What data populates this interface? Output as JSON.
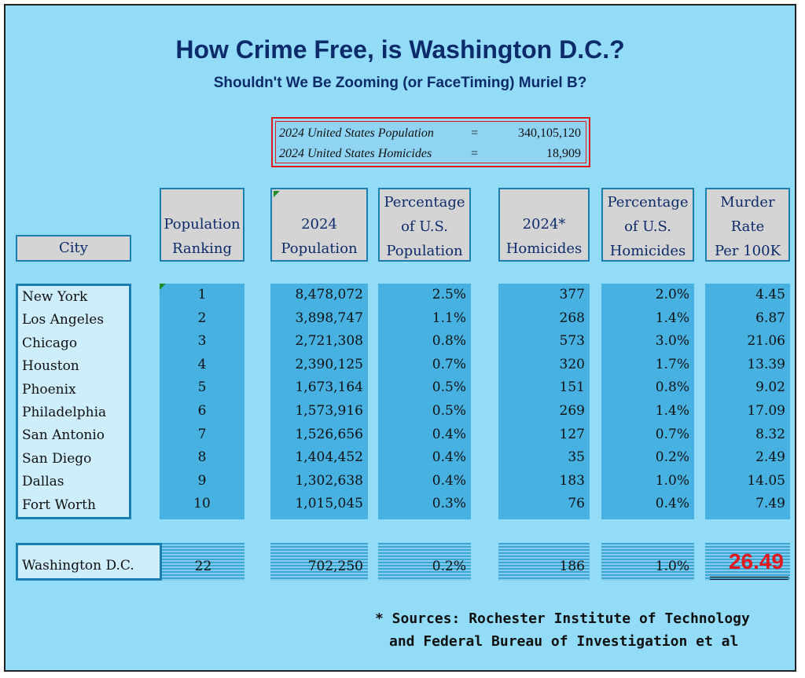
{
  "title": "How Crime Free, is Washington D.C.?",
  "subtitle": "Shouldn't We Be Zooming (or FaceTiming) Muriel B?",
  "us_summary": {
    "population_label": "2024 United States Population",
    "population_eq": "=",
    "population_value": "340,105,120",
    "homicides_label": "2024 United States Homicides",
    "homicides_eq": "=",
    "homicides_value": "18,909"
  },
  "headers": {
    "city": "City",
    "ranking": [
      "Population",
      "Ranking"
    ],
    "population": [
      "2024",
      "Population"
    ],
    "pct_population": [
      "Percentage",
      "of U.S.",
      "Population"
    ],
    "homicides": [
      "2024*",
      "Homicides"
    ],
    "pct_homicides": [
      "Percentage",
      "of U.S.",
      "Homicides"
    ],
    "murder_rate": [
      "Murder",
      "Rate",
      "Per 100K"
    ]
  },
  "rows": [
    {
      "city": "New York",
      "rank": "1",
      "population": "8,478,072",
      "pct_pop": "2.5%",
      "homicides": "377",
      "pct_hom": "2.0%",
      "rate": "4.45"
    },
    {
      "city": "Los Angeles",
      "rank": "2",
      "population": "3,898,747",
      "pct_pop": "1.1%",
      "homicides": "268",
      "pct_hom": "1.4%",
      "rate": "6.87"
    },
    {
      "city": "Chicago",
      "rank": "3",
      "population": "2,721,308",
      "pct_pop": "0.8%",
      "homicides": "573",
      "pct_hom": "3.0%",
      "rate": "21.06"
    },
    {
      "city": "Houston",
      "rank": "4",
      "population": "2,390,125",
      "pct_pop": "0.7%",
      "homicides": "320",
      "pct_hom": "1.7%",
      "rate": "13.39"
    },
    {
      "city": "Phoenix",
      "rank": "5",
      "population": "1,673,164",
      "pct_pop": "0.5%",
      "homicides": "151",
      "pct_hom": "0.8%",
      "rate": "9.02"
    },
    {
      "city": "Philadelphia",
      "rank": "6",
      "population": "1,573,916",
      "pct_pop": "0.5%",
      "homicides": "269",
      "pct_hom": "1.4%",
      "rate": "17.09"
    },
    {
      "city": "San Antonio",
      "rank": "7",
      "population": "1,526,656",
      "pct_pop": "0.4%",
      "homicides": "127",
      "pct_hom": "0.7%",
      "rate": "8.32"
    },
    {
      "city": "San Diego",
      "rank": "8",
      "population": "1,404,452",
      "pct_pop": "0.4%",
      "homicides": "35",
      "pct_hom": "0.2%",
      "rate": "2.49"
    },
    {
      "city": "Dallas",
      "rank": "9",
      "population": "1,302,638",
      "pct_pop": "0.4%",
      "homicides": "183",
      "pct_hom": "1.0%",
      "rate": "14.05"
    },
    {
      "city": "Fort Worth",
      "rank": "10",
      "population": "1,015,045",
      "pct_pop": "0.3%",
      "homicides": "76",
      "pct_hom": "0.4%",
      "rate": "7.49"
    }
  ],
  "dc": {
    "city": "Washington D.C.",
    "rank": "22",
    "population": "702,250",
    "pct_pop": "0.2%",
    "homicides": "186",
    "pct_hom": "1.0%",
    "rate": "26.49"
  },
  "sources": {
    "line1": "* Sources: Rochester Institute of Technology",
    "line2": "and Federal Bureau of Investigation et al"
  },
  "colors": {
    "title": "#0d2b6b",
    "highlight_rate": "#e0191f",
    "background": "#93dcf8",
    "column_fill": "#47b1e1"
  }
}
